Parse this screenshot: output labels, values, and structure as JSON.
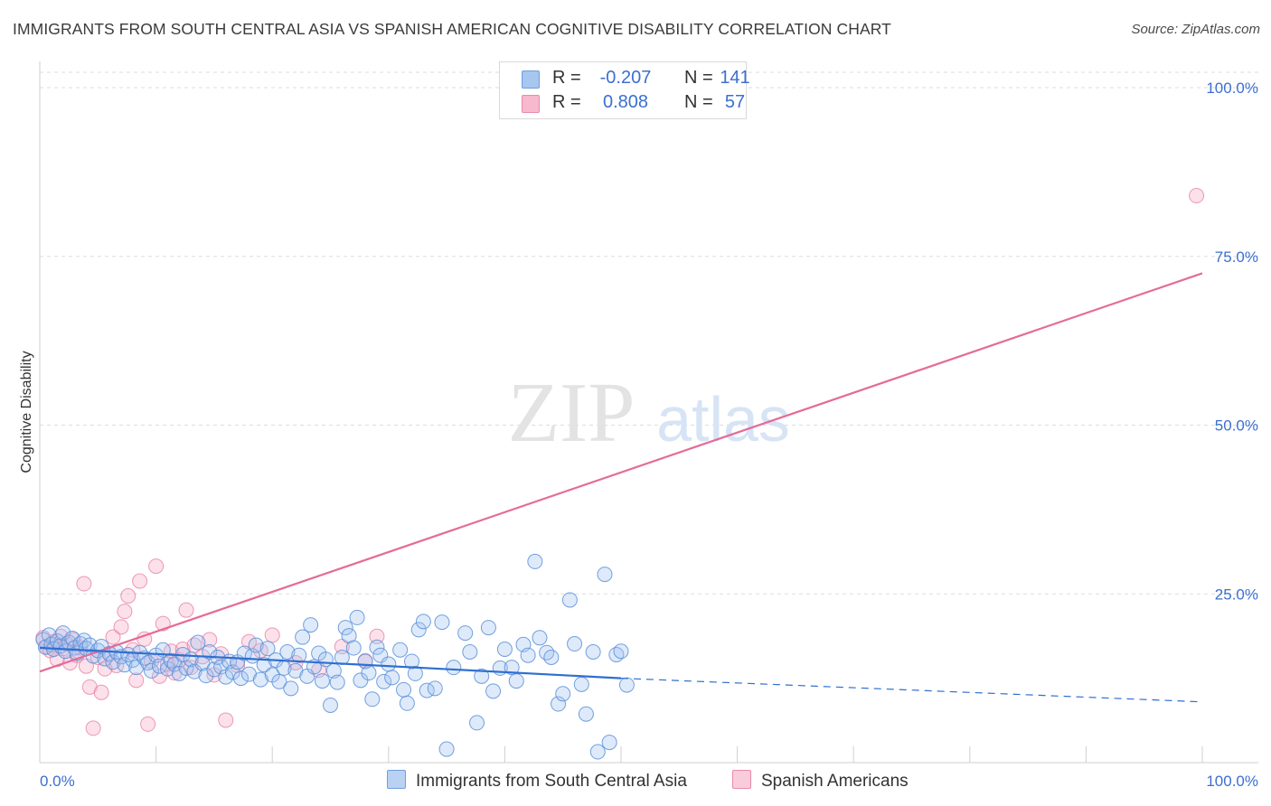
{
  "title": "IMMIGRANTS FROM SOUTH CENTRAL ASIA VS SPANISH AMERICAN COGNITIVE DISABILITY CORRELATION CHART",
  "source": "Source: ZipAtlas.com",
  "watermark": {
    "zip": "ZIP",
    "atlas": "atlas"
  },
  "legend": {
    "rows": [
      {
        "r_label": "R =",
        "r_value": "-0.207",
        "n_label": "N =",
        "n_value": "141",
        "color": "#a7c6f0",
        "border": "#6f9ee0"
      },
      {
        "r_label": "R =",
        "r_value": "0.808",
        "n_label": "N =",
        "n_value": "57",
        "color": "#f6b9cd",
        "border": "#e98aa8"
      }
    ]
  },
  "colors": {
    "blue": "#5b8fd9",
    "blue_line": "#2f6fd0",
    "pink": "#e57aa0",
    "pink_line": "#e56b97",
    "axis_text": "#3b6fd0",
    "grid": "#dddddd"
  },
  "chart_data": {
    "type": "scatter",
    "title": "IMMIGRANTS FROM SOUTH CENTRAL ASIA VS SPANISH AMERICAN COGNITIVE DISABILITY CORRELATION CHART",
    "xlabel": "",
    "ylabel": "Cognitive Disability",
    "xlim": [
      0,
      100
    ],
    "ylim": [
      0,
      100
    ],
    "x_tick_labels": [
      "0.0%",
      "100.0%"
    ],
    "y_tick_labels": [
      "25.0%",
      "50.0%",
      "75.0%",
      "100.0%"
    ],
    "y_ticks": [
      25,
      50,
      75,
      100
    ],
    "series": [
      {
        "name": "Immigrants from South Central Asia",
        "R": -0.207,
        "N": 141,
        "trend": {
          "x0": 0,
          "y0": 17.0,
          "x1": 50,
          "y1": 12.5,
          "dashed_to_x": 100,
          "dashed_to_y": 9.0
        },
        "points": [
          [
            0.3,
            18.2
          ],
          [
            0.5,
            17.1
          ],
          [
            0.8,
            18.9
          ],
          [
            1.0,
            17.5
          ],
          [
            1.2,
            16.8
          ],
          [
            1.5,
            18.0
          ],
          [
            1.8,
            17.3
          ],
          [
            2.0,
            19.2
          ],
          [
            2.2,
            16.5
          ],
          [
            2.5,
            17.8
          ],
          [
            2.8,
            18.4
          ],
          [
            3.0,
            17.0
          ],
          [
            3.2,
            16.2
          ],
          [
            3.5,
            17.6
          ],
          [
            3.8,
            18.1
          ],
          [
            4.0,
            16.9
          ],
          [
            4.3,
            17.4
          ],
          [
            4.6,
            15.8
          ],
          [
            5.0,
            16.6
          ],
          [
            5.3,
            17.2
          ],
          [
            5.6,
            15.4
          ],
          [
            6.0,
            16.1
          ],
          [
            6.3,
            14.9
          ],
          [
            6.6,
            16.4
          ],
          [
            7.0,
            15.7
          ],
          [
            7.3,
            14.5
          ],
          [
            7.6,
            16.0
          ],
          [
            8.0,
            15.2
          ],
          [
            8.3,
            14.1
          ],
          [
            8.6,
            16.3
          ],
          [
            9.0,
            15.5
          ],
          [
            9.3,
            14.8
          ],
          [
            9.6,
            13.6
          ],
          [
            10.0,
            15.9
          ],
          [
            10.3,
            14.3
          ],
          [
            10.6,
            16.7
          ],
          [
            11.0,
            13.9
          ],
          [
            11.3,
            15.1
          ],
          [
            11.6,
            14.6
          ],
          [
            12.0,
            13.2
          ],
          [
            12.3,
            16.0
          ],
          [
            12.6,
            14.0
          ],
          [
            13.0,
            15.3
          ],
          [
            13.3,
            13.5
          ],
          [
            13.6,
            17.8
          ],
          [
            14.0,
            14.7
          ],
          [
            14.3,
            12.9
          ],
          [
            14.6,
            16.4
          ],
          [
            15.0,
            13.8
          ],
          [
            15.3,
            15.6
          ],
          [
            15.6,
            14.2
          ],
          [
            16.0,
            12.7
          ],
          [
            16.3,
            15.0
          ],
          [
            16.6,
            13.4
          ],
          [
            17.0,
            14.9
          ],
          [
            17.3,
            12.5
          ],
          [
            17.6,
            16.2
          ],
          [
            18.0,
            13.1
          ],
          [
            18.3,
            15.8
          ],
          [
            18.6,
            17.4
          ],
          [
            19.0,
            12.3
          ],
          [
            19.3,
            14.5
          ],
          [
            19.6,
            16.9
          ],
          [
            20.0,
            13.0
          ],
          [
            20.3,
            15.2
          ],
          [
            20.6,
            12.0
          ],
          [
            21.0,
            14.0
          ],
          [
            21.3,
            16.4
          ],
          [
            21.6,
            11.0
          ],
          [
            22.0,
            13.6
          ],
          [
            22.3,
            15.9
          ],
          [
            22.6,
            18.6
          ],
          [
            23.0,
            12.8
          ],
          [
            23.3,
            20.4
          ],
          [
            23.6,
            14.2
          ],
          [
            24.0,
            16.2
          ],
          [
            24.3,
            12.1
          ],
          [
            24.6,
            15.3
          ],
          [
            25.0,
            8.5
          ],
          [
            25.3,
            13.6
          ],
          [
            25.6,
            11.9
          ],
          [
            26.0,
            15.6
          ],
          [
            26.3,
            20.0
          ],
          [
            26.6,
            18.8
          ],
          [
            27.0,
            17.0
          ],
          [
            27.3,
            21.5
          ],
          [
            27.6,
            12.2
          ],
          [
            28.0,
            15.0
          ],
          [
            28.3,
            13.3
          ],
          [
            28.6,
            9.4
          ],
          [
            29.0,
            17.1
          ],
          [
            29.3,
            15.9
          ],
          [
            29.6,
            12.0
          ],
          [
            30.0,
            14.6
          ],
          [
            30.3,
            12.6
          ],
          [
            31.0,
            16.7
          ],
          [
            31.3,
            10.8
          ],
          [
            31.6,
            8.8
          ],
          [
            32.0,
            15.0
          ],
          [
            32.3,
            13.2
          ],
          [
            32.6,
            19.7
          ],
          [
            33.0,
            20.9
          ],
          [
            33.3,
            10.7
          ],
          [
            34.0,
            11.0
          ],
          [
            34.6,
            20.8
          ],
          [
            35.0,
            2.0
          ],
          [
            35.6,
            14.1
          ],
          [
            36.6,
            19.2
          ],
          [
            37.0,
            16.4
          ],
          [
            37.6,
            5.9
          ],
          [
            38.0,
            12.8
          ],
          [
            38.6,
            20.0
          ],
          [
            39.0,
            10.6
          ],
          [
            39.6,
            14.0
          ],
          [
            40.0,
            16.8
          ],
          [
            40.6,
            14.1
          ],
          [
            41.0,
            12.1
          ],
          [
            41.6,
            17.5
          ],
          [
            42.0,
            15.9
          ],
          [
            42.6,
            29.8
          ],
          [
            43.0,
            18.5
          ],
          [
            43.6,
            16.3
          ],
          [
            44.0,
            15.6
          ],
          [
            44.6,
            8.7
          ],
          [
            45.0,
            10.2
          ],
          [
            45.6,
            24.1
          ],
          [
            46.0,
            17.6
          ],
          [
            46.6,
            11.6
          ],
          [
            47.0,
            7.2
          ],
          [
            47.6,
            16.4
          ],
          [
            48.0,
            1.6
          ],
          [
            48.6,
            27.9
          ],
          [
            49.0,
            3.0
          ],
          [
            49.6,
            16.0
          ],
          [
            50.0,
            16.5
          ],
          [
            50.5,
            11.5
          ]
        ]
      },
      {
        "name": "Spanish Americans",
        "R": 0.808,
        "N": 57,
        "trend": {
          "x0": 0,
          "y0": 13.5,
          "x1": 100,
          "y1": 72.5
        },
        "points": [
          [
            0.3,
            18.5
          ],
          [
            0.6,
            17.2
          ],
          [
            0.9,
            16.6
          ],
          [
            1.2,
            17.9
          ],
          [
            1.5,
            15.3
          ],
          [
            1.8,
            18.7
          ],
          [
            2.0,
            16.9
          ],
          [
            2.3,
            17.6
          ],
          [
            2.6,
            14.8
          ],
          [
            2.9,
            18.2
          ],
          [
            3.2,
            15.9
          ],
          [
            3.5,
            17.0
          ],
          [
            3.8,
            26.5
          ],
          [
            4.0,
            14.3
          ],
          [
            4.3,
            11.2
          ],
          [
            4.6,
            5.1
          ],
          [
            5.0,
            15.6
          ],
          [
            5.3,
            10.4
          ],
          [
            5.6,
            13.9
          ],
          [
            6.0,
            16.2
          ],
          [
            6.3,
            18.6
          ],
          [
            6.6,
            14.4
          ],
          [
            7.0,
            20.1
          ],
          [
            7.3,
            22.4
          ],
          [
            7.6,
            24.7
          ],
          [
            8.0,
            16.7
          ],
          [
            8.3,
            12.2
          ],
          [
            8.6,
            26.9
          ],
          [
            9.0,
            18.3
          ],
          [
            9.3,
            5.7
          ],
          [
            9.6,
            15.0
          ],
          [
            10.0,
            29.1
          ],
          [
            10.3,
            12.8
          ],
          [
            10.6,
            20.6
          ],
          [
            11.0,
            14.6
          ],
          [
            11.3,
            16.5
          ],
          [
            11.6,
            13.3
          ],
          [
            12.0,
            15.2
          ],
          [
            12.3,
            16.8
          ],
          [
            12.6,
            22.6
          ],
          [
            13.0,
            14.1
          ],
          [
            13.3,
            17.4
          ],
          [
            14.0,
            15.7
          ],
          [
            14.6,
            18.2
          ],
          [
            15.0,
            13.0
          ],
          [
            15.6,
            16.1
          ],
          [
            16.0,
            6.3
          ],
          [
            17.0,
            14.4
          ],
          [
            18.0,
            17.9
          ],
          [
            19.0,
            16.6
          ],
          [
            20.0,
            18.9
          ],
          [
            22.0,
            14.8
          ],
          [
            24.0,
            13.7
          ],
          [
            26.0,
            17.2
          ],
          [
            28.0,
            15.1
          ],
          [
            29.0,
            18.7
          ],
          [
            99.5,
            84.0
          ]
        ]
      }
    ]
  },
  "bottom_legend": {
    "blue_label": "Immigrants from South Central Asia",
    "pink_label": "Spanish Americans"
  }
}
